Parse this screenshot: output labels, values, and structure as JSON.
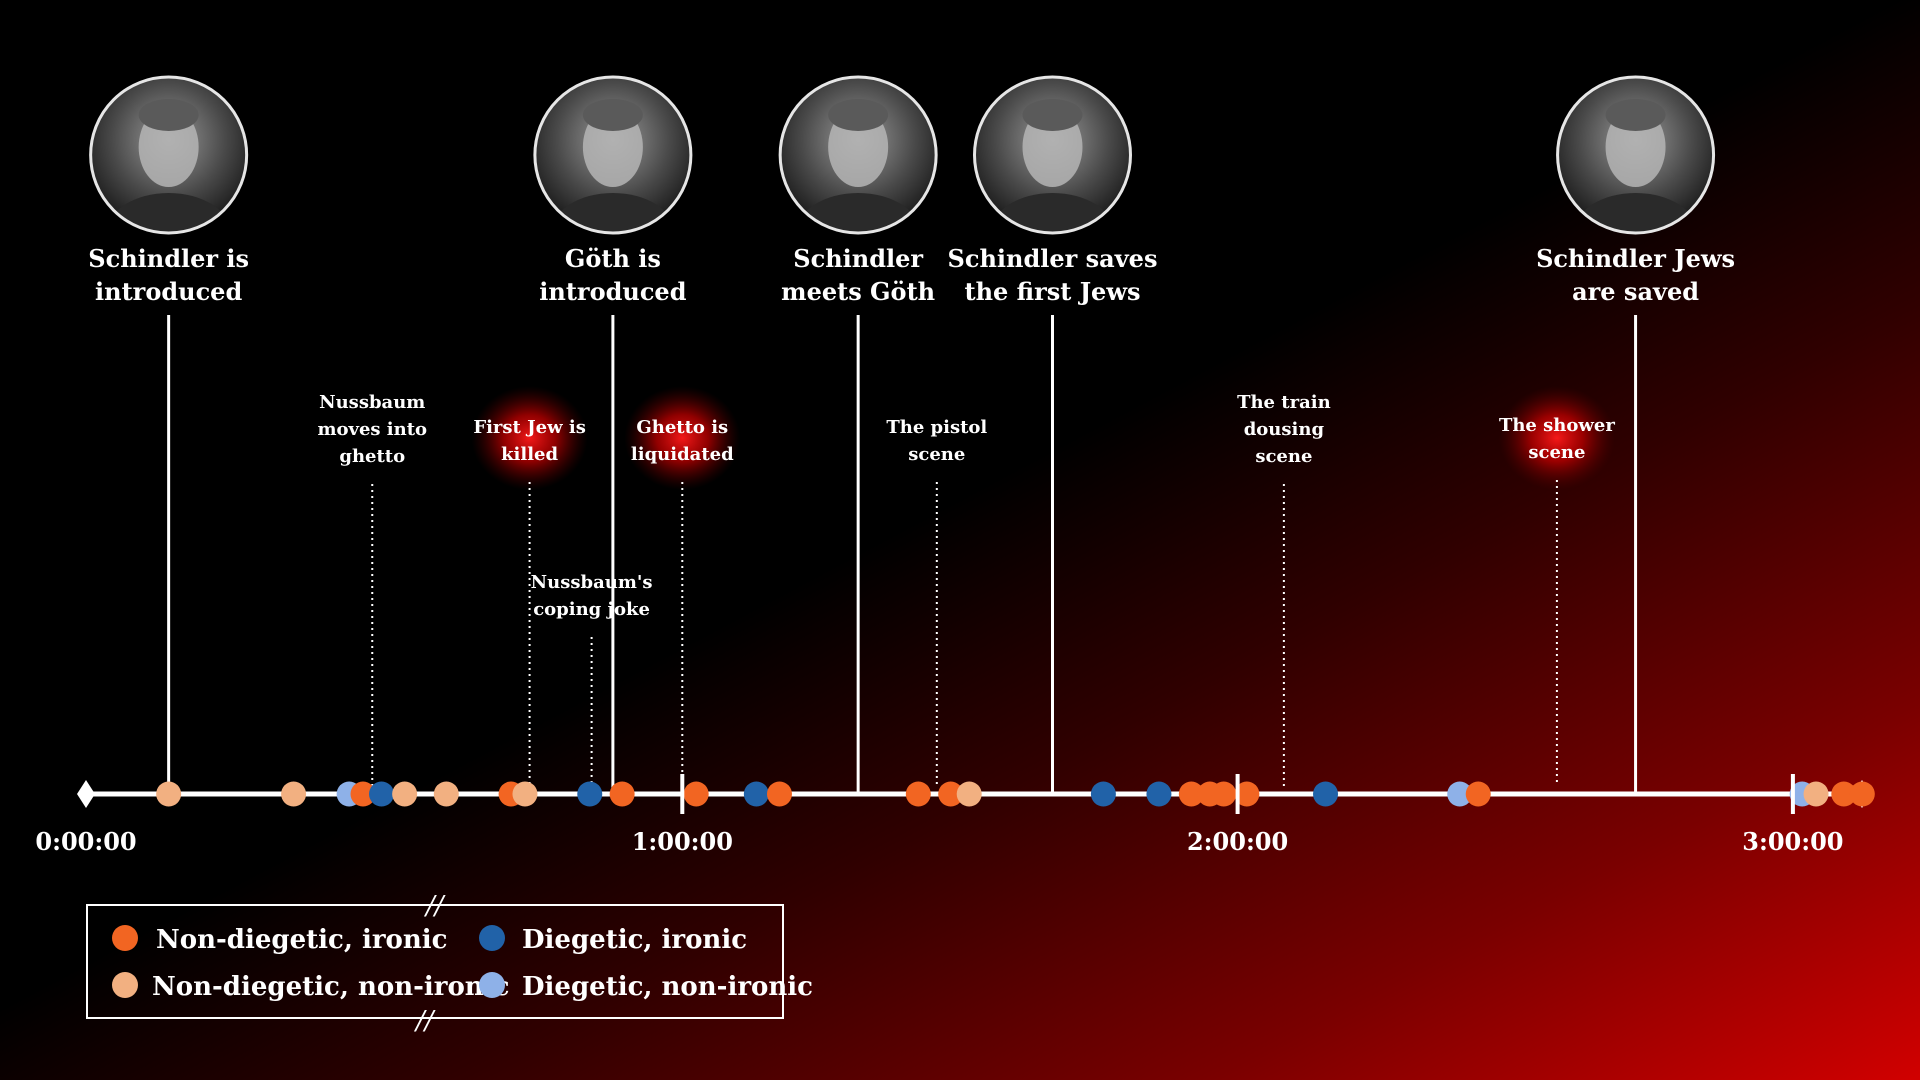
{
  "colors": {
    "non_diegetic_ironic": "#f26522",
    "non_diegetic_non_ironic": "#f2b081",
    "diegetic_ironic": "#2162a8",
    "diegetic_non_ironic": "#8eb1e8",
    "highlight_glow": "#ff1a1a"
  },
  "chart_data": {
    "type": "scatter",
    "title": "",
    "xlabel": "",
    "ylabel": "",
    "x_unit": "minutes",
    "xlim": [
      0,
      195
    ],
    "ticks": [
      {
        "value": 0,
        "label": "0:00:00"
      },
      {
        "value": 60,
        "label": "1:00:00"
      },
      {
        "value": 120,
        "label": "2:00:00"
      },
      {
        "value": 180,
        "label": "3:00:00"
      }
    ],
    "axis_breaks_at": [
      120,
      180
    ],
    "legend": {
      "placement": "bottom-left",
      "entries": [
        {
          "key": "non_diegetic_ironic",
          "label": "Non-diegetic, ironic"
        },
        {
          "key": "diegetic_ironic",
          "label": "Diegetic, ironic"
        },
        {
          "key": "non_diegetic_non_ironic",
          "label": "Non-diegetic, non-ironic"
        },
        {
          "key": "diegetic_non_ironic",
          "label": "Diegetic, non-ironic"
        }
      ]
    },
    "series": [
      {
        "key": "non_diegetic_ironic",
        "x": [
          25.5,
          41.5,
          53.5,
          61.5,
          70.5,
          85.5,
          89,
          115,
          117,
          118.5,
          121,
          146,
          185.5,
          187.5
        ]
      },
      {
        "key": "non_diegetic_non_ironic",
        "x": [
          4.5,
          18,
          30,
          34.5,
          43,
          91,
          182.5
        ]
      },
      {
        "key": "diegetic_ironic",
        "x": [
          27.5,
          50,
          68,
          105.5,
          111.5,
          129.5
        ]
      },
      {
        "key": "diegetic_non_ironic",
        "x": [
          24,
          144,
          181
        ]
      }
    ],
    "major_events": [
      {
        "time": 4.5,
        "label": [
          "Schindler is",
          "introduced"
        ],
        "portrait": "schindler-portrait"
      },
      {
        "time": 52.5,
        "label": [
          "Göth is",
          "introduced"
        ],
        "portrait": "goth-portrait"
      },
      {
        "time": 79,
        "label": [
          "Schindler",
          "meets Göth"
        ],
        "portrait": "meeting-still"
      },
      {
        "time": 100,
        "label": [
          "Schindler saves",
          "the first Jews"
        ],
        "portrait": "office-still"
      },
      {
        "time": 163,
        "label": [
          "Schindler Jews",
          "are saved"
        ],
        "portrait": "schindler-speech-still"
      }
    ],
    "minor_events": [
      {
        "time": 26.5,
        "label": [
          "Nussbaum",
          "moves into",
          "ghetto"
        ],
        "highlight": false
      },
      {
        "time": 43.5,
        "label": [
          "First Jew is",
          "killed"
        ],
        "highlight": true
      },
      {
        "time": 50.2,
        "label": [
          "Nussbaum's",
          "coping joke"
        ],
        "highlight": false
      },
      {
        "time": 60,
        "label": [
          "Ghetto is",
          "liquidated"
        ],
        "highlight": true
      },
      {
        "time": 87.5,
        "label": [
          "The pistol",
          "scene"
        ],
        "highlight": false
      },
      {
        "time": 125,
        "label": [
          "The train",
          "dousing",
          "scene"
        ],
        "highlight": false
      },
      {
        "time": 154.5,
        "label": [
          "The shower",
          "scene"
        ],
        "highlight": true
      }
    ]
  }
}
